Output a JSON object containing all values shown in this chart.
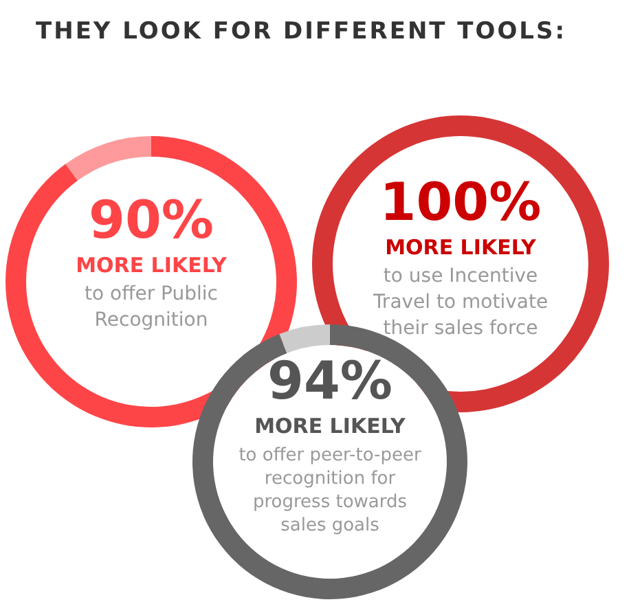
{
  "chart_data": [
    {
      "type": "other",
      "title": "THEY LOOK FOR DIFFERENT TOOLS:"
    },
    {
      "type": "donut",
      "title": "90%",
      "subtitle": "MORE LIKELY",
      "annotations": [
        "to offer Public Recognition"
      ],
      "categories": [
        null,
        null
      ],
      "values": [
        90,
        10
      ],
      "colors": [
        "#fd4548",
        "#fe9a9b"
      ]
    },
    {
      "type": "donut",
      "title": "100%",
      "subtitle": "MORE LIKELY",
      "annotations": [
        "to use Incentive Travel to motivate their sales force"
      ],
      "categories": [
        null,
        null
      ],
      "values": [
        100,
        0
      ],
      "colors": [
        "#d63535",
        "#f0a0a0"
      ]
    },
    {
      "type": "donut",
      "title": "94%",
      "subtitle": "MORE LIKELY",
      "annotations": [
        "to offer peer-to-peer recognition for progress towards sales goals"
      ],
      "categories": [
        null,
        null
      ],
      "values": [
        94,
        6
      ],
      "colors": [
        "#666666",
        "#cccccc"
      ]
    }
  ]
}
